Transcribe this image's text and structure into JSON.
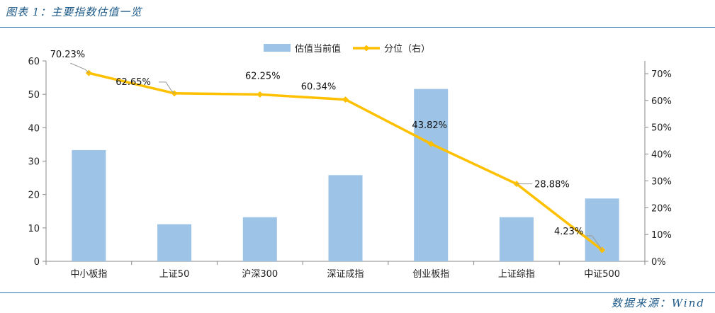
{
  "header": {
    "title": "图表 1：主要指数估值一览"
  },
  "footer": {
    "source": "数据来源：Wind"
  },
  "chart_data": {
    "type": "bar+line",
    "categories": [
      "中小板指",
      "上证50",
      "沪深300",
      "深证成指",
      "创业板指",
      "上证综指",
      "中证500"
    ],
    "series": [
      {
        "name": "估值当前值",
        "type": "bar",
        "axis": "left",
        "values": [
          33.3,
          11.1,
          13.2,
          25.8,
          51.6,
          13.2,
          18.8
        ]
      },
      {
        "name": "分位（右）",
        "type": "line",
        "axis": "right",
        "values": [
          70.23,
          62.65,
          62.25,
          60.34,
          43.82,
          28.88,
          4.23
        ],
        "labels": [
          "70.23%",
          "62.65%",
          "62.25%",
          "60.34%",
          "43.82%",
          "28.88%",
          "4.23%"
        ]
      }
    ],
    "y_left": {
      "range": [
        0,
        60
      ],
      "ticks": [
        "0",
        "10",
        "20",
        "30",
        "40",
        "50",
        "60"
      ]
    },
    "y_right": {
      "range": [
        0,
        75
      ],
      "ticks": [
        "0%",
        "10%",
        "20%",
        "30%",
        "40%",
        "50%",
        "60%",
        "70%"
      ]
    },
    "legend": {
      "position": "top-center"
    },
    "colors": {
      "bar": "#9dc3e6",
      "line": "#ffc000",
      "axis": "#888888"
    }
  }
}
